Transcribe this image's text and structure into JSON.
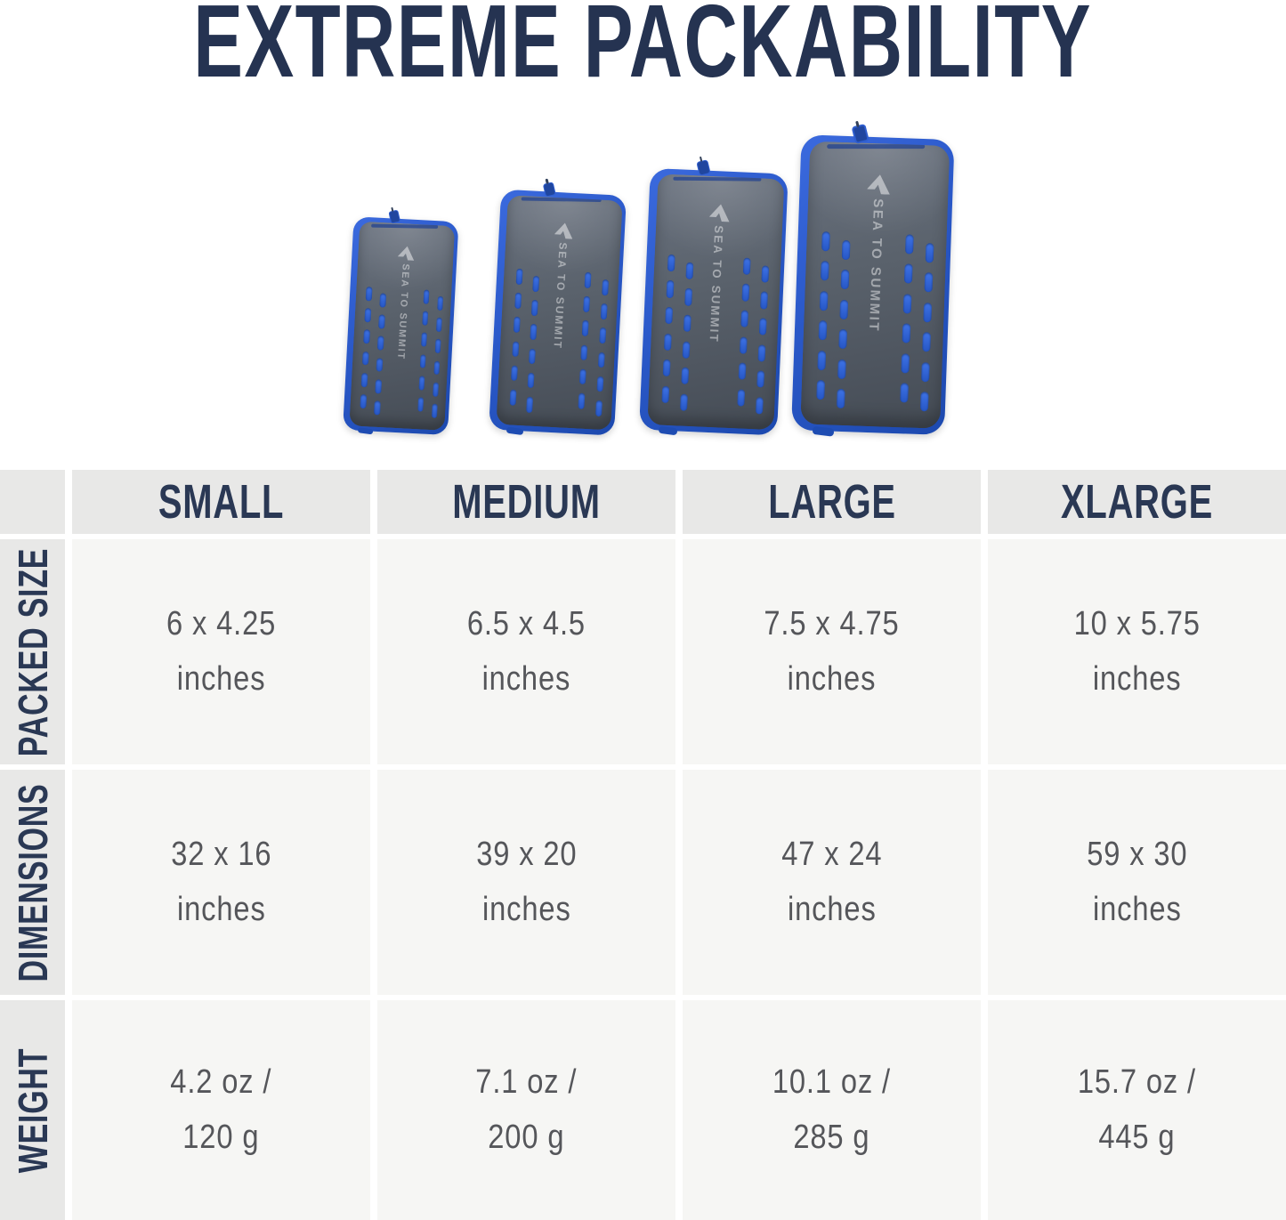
{
  "title": "EXTREME PACKABILITY",
  "brand": {
    "logo_text": "SEA TO SUMMIT"
  },
  "products": [
    {
      "id": "small",
      "label": "SMALL"
    },
    {
      "id": "medium",
      "label": "MEDIUM"
    },
    {
      "id": "large",
      "label": "LARGE"
    },
    {
      "id": "xlarge",
      "label": "XLARGE"
    }
  ],
  "table": {
    "columns": [
      "SMALL",
      "MEDIUM",
      "LARGE",
      "XLARGE"
    ],
    "row_labels": [
      "PACKED SIZE",
      "DIMENSIONS",
      "WEIGHT"
    ],
    "cells": [
      [
        "6 x 4.25\ninches",
        "6.5 x 4.5\ninches",
        "7.5 x 4.75\ninches",
        "10 x 5.75\ninches"
      ],
      [
        "32 x 16\ninches",
        "39 x 20\ninches",
        "47 x 24\ninches",
        "59 x 30\ninches"
      ],
      [
        "4.2 oz /\n120 g",
        "7.1 oz /\n200 g",
        "10.1 oz /\n285 g",
        "15.7 oz /\n445 g"
      ]
    ]
  },
  "chart_data": {
    "type": "table",
    "title": "EXTREME PACKABILITY",
    "columns": [
      "SMALL",
      "MEDIUM",
      "LARGE",
      "XLARGE"
    ],
    "rows": [
      {
        "label": "PACKED SIZE",
        "values": [
          "6 x 4.25 inches",
          "6.5 x 4.5 inches",
          "7.5 x 4.75 inches",
          "10 x 5.75 inches"
        ]
      },
      {
        "label": "DIMENSIONS",
        "values": [
          "32 x 16 inches",
          "39 x 20 inches",
          "47 x 24 inches",
          "59 x 30 inches"
        ]
      },
      {
        "label": "WEIGHT",
        "values": [
          "4.2 oz / 120 g",
          "7.1 oz / 200 g",
          "10.1 oz / 285 g",
          "15.7 oz / 445 g"
        ]
      }
    ]
  },
  "colors": {
    "navy_text": "#253351",
    "header_cell_bg": "#e8e8e7",
    "data_cell_bg": "#f6f6f4",
    "cell_text": "#55565a",
    "pouch_gray": "#5a626c",
    "pouch_blue": "#2a58c8",
    "slot_blue": "#2f63d8"
  }
}
